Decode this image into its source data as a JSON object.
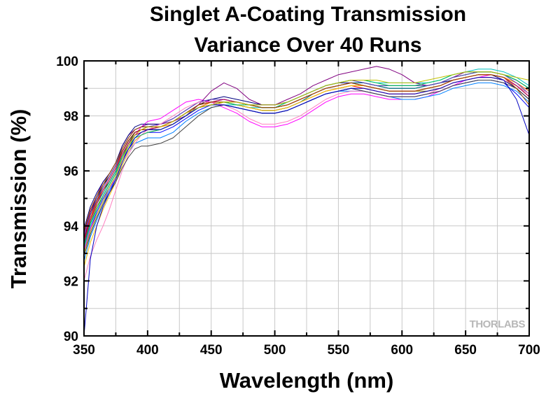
{
  "chart_data": {
    "type": "line",
    "title_line1": "Singlet A-Coating Transmission",
    "title_line2": "Variance Over 40 Runs",
    "xlabel": "Wavelength (nm)",
    "ylabel": "Transmission (%)",
    "xlim": [
      350,
      700
    ],
    "ylim": [
      90,
      100
    ],
    "x_ticks": [
      "350",
      "400",
      "450",
      "500",
      "550",
      "600",
      "650",
      "700"
    ],
    "y_ticks": [
      "90",
      "92",
      "94",
      "96",
      "98",
      "100"
    ],
    "grid": true,
    "legend": "none",
    "watermark": "THORLABS",
    "x": [
      350,
      355,
      360,
      365,
      370,
      375,
      380,
      385,
      390,
      395,
      400,
      410,
      420,
      430,
      440,
      450,
      460,
      470,
      480,
      490,
      500,
      510,
      520,
      530,
      540,
      550,
      560,
      570,
      580,
      590,
      600,
      610,
      620,
      630,
      640,
      650,
      660,
      670,
      680,
      690,
      700
    ],
    "series": [
      {
        "color": "#000000",
        "values": [
          93.8,
          94.5,
          95.0,
          95.5,
          95.8,
          96.2,
          96.8,
          97.2,
          97.5,
          97.6,
          97.6,
          97.6,
          97.8,
          98.1,
          98.4,
          98.6,
          98.6,
          98.5,
          98.4,
          98.3,
          98.3,
          98.4,
          98.6,
          98.8,
          99.0,
          99.1,
          99.2,
          99.1,
          99.0,
          98.9,
          98.9,
          98.9,
          99.0,
          99.1,
          99.3,
          99.4,
          99.5,
          99.5,
          99.4,
          99.1,
          98.8
        ]
      },
      {
        "color": "#ff0000",
        "values": [
          93.5,
          94.3,
          94.8,
          95.3,
          95.7,
          96.1,
          96.7,
          97.1,
          97.4,
          97.5,
          97.5,
          97.5,
          97.7,
          98.0,
          98.3,
          98.5,
          98.5,
          98.4,
          98.3,
          98.2,
          98.2,
          98.3,
          98.5,
          98.7,
          98.9,
          99.0,
          99.1,
          99.0,
          98.9,
          98.8,
          98.8,
          98.8,
          98.9,
          99.0,
          99.2,
          99.3,
          99.4,
          99.4,
          99.3,
          99.0,
          98.6
        ]
      },
      {
        "color": "#0000ff",
        "values": [
          93.0,
          93.9,
          94.5,
          95.0,
          95.4,
          95.8,
          96.4,
          96.8,
          97.1,
          97.3,
          97.4,
          97.4,
          97.6,
          97.9,
          98.2,
          98.4,
          98.4,
          98.3,
          98.2,
          98.1,
          98.1,
          98.2,
          98.4,
          98.6,
          98.8,
          98.9,
          99.0,
          98.9,
          98.8,
          98.7,
          98.7,
          98.7,
          98.8,
          98.9,
          99.1,
          99.2,
          99.3,
          99.3,
          99.2,
          98.8,
          98.3
        ]
      },
      {
        "color": "#00a000",
        "values": [
          93.4,
          94.2,
          94.8,
          95.3,
          95.6,
          96.0,
          96.6,
          97.0,
          97.4,
          97.5,
          97.6,
          97.6,
          97.8,
          98.1,
          98.4,
          98.5,
          98.5,
          98.5,
          98.4,
          98.4,
          98.4,
          98.5,
          98.7,
          98.9,
          99.1,
          99.2,
          99.3,
          99.2,
          99.1,
          99.1,
          99.1,
          99.1,
          99.1,
          99.2,
          99.4,
          99.5,
          99.6,
          99.6,
          99.5,
          99.3,
          99.0
        ]
      },
      {
        "color": "#ff00ff",
        "values": [
          93.1,
          93.9,
          94.4,
          94.9,
          95.3,
          95.8,
          96.4,
          96.9,
          97.3,
          97.6,
          97.8,
          97.9,
          98.2,
          98.5,
          98.6,
          98.5,
          98.3,
          98.1,
          97.8,
          97.6,
          97.6,
          97.7,
          97.9,
          98.2,
          98.5,
          98.7,
          98.8,
          98.8,
          98.7,
          98.6,
          98.6,
          98.6,
          98.7,
          98.9,
          99.1,
          99.3,
          99.4,
          99.5,
          99.4,
          99.2,
          98.9
        ]
      },
      {
        "color": "#00c0c0",
        "values": [
          93.2,
          94.0,
          94.6,
          95.1,
          95.5,
          95.9,
          96.5,
          96.9,
          97.3,
          97.4,
          97.5,
          97.6,
          97.8,
          98.1,
          98.3,
          98.4,
          98.4,
          98.4,
          98.3,
          98.3,
          98.3,
          98.5,
          98.7,
          98.9,
          99.1,
          99.2,
          99.3,
          99.3,
          99.2,
          99.2,
          99.2,
          99.2,
          99.2,
          99.3,
          99.5,
          99.6,
          99.7,
          99.7,
          99.6,
          99.4,
          99.1
        ]
      },
      {
        "color": "#800080",
        "values": [
          93.7,
          94.5,
          95.1,
          95.6,
          95.9,
          96.3,
          96.9,
          97.3,
          97.5,
          97.6,
          97.7,
          97.7,
          97.8,
          98.0,
          98.4,
          98.9,
          99.2,
          99.0,
          98.6,
          98.4,
          98.4,
          98.6,
          98.8,
          99.1,
          99.3,
          99.5,
          99.6,
          99.7,
          99.8,
          99.7,
          99.5,
          99.2,
          99.1,
          99.2,
          99.4,
          99.6,
          99.6,
          99.6,
          99.5,
          99.3,
          99.0
        ]
      },
      {
        "color": "#808000",
        "values": [
          93.3,
          94.1,
          94.7,
          95.1,
          95.5,
          95.9,
          96.5,
          97.0,
          97.3,
          97.4,
          97.5,
          97.5,
          97.7,
          98.0,
          98.3,
          98.4,
          98.5,
          98.4,
          98.3,
          98.2,
          98.2,
          98.3,
          98.5,
          98.7,
          98.9,
          99.0,
          99.1,
          99.1,
          99.0,
          98.9,
          98.9,
          98.9,
          98.9,
          99.0,
          99.2,
          99.3,
          99.4,
          99.4,
          99.3,
          99.1,
          98.7
        ]
      },
      {
        "color": "#000080",
        "values": [
          93.9,
          94.7,
          95.2,
          95.6,
          95.9,
          96.3,
          96.9,
          97.3,
          97.6,
          97.7,
          97.7,
          97.7,
          97.9,
          98.2,
          98.5,
          98.6,
          98.7,
          98.6,
          98.5,
          98.4,
          98.4,
          98.5,
          98.7,
          98.9,
          99.1,
          99.2,
          99.2,
          99.2,
          99.1,
          99.0,
          99.0,
          99.0,
          99.1,
          99.2,
          99.3,
          99.4,
          99.5,
          99.5,
          99.3,
          99.0,
          98.6
        ]
      },
      {
        "color": "#ff8000",
        "values": [
          93.6,
          94.3,
          94.9,
          95.3,
          95.7,
          96.1,
          96.7,
          97.1,
          97.4,
          97.5,
          97.6,
          97.6,
          97.7,
          98.0,
          98.3,
          98.5,
          98.5,
          98.5,
          98.4,
          98.3,
          98.3,
          98.4,
          98.6,
          98.8,
          99.0,
          99.1,
          99.2,
          99.1,
          99.0,
          98.9,
          98.9,
          98.9,
          99.0,
          99.1,
          99.3,
          99.4,
          99.5,
          99.5,
          99.4,
          99.2,
          98.9
        ]
      },
      {
        "color": "#0080ff",
        "values": [
          92.7,
          93.6,
          94.2,
          94.8,
          95.3,
          95.7,
          96.2,
          96.7,
          97.0,
          97.1,
          97.2,
          97.2,
          97.4,
          97.8,
          98.1,
          98.3,
          98.4,
          98.3,
          98.2,
          98.1,
          98.1,
          98.2,
          98.4,
          98.6,
          98.8,
          98.9,
          98.9,
          98.9,
          98.8,
          98.7,
          98.6,
          98.6,
          98.7,
          98.8,
          99.0,
          99.1,
          99.2,
          99.2,
          99.1,
          98.9,
          98.5
        ]
      },
      {
        "color": "#800000",
        "values": [
          93.5,
          94.4,
          94.9,
          95.4,
          95.8,
          96.2,
          96.7,
          97.1,
          97.4,
          97.5,
          97.5,
          97.6,
          97.8,
          98.1,
          98.4,
          98.5,
          98.6,
          98.5,
          98.4,
          98.3,
          98.3,
          98.4,
          98.6,
          98.8,
          99.0,
          99.1,
          99.2,
          99.1,
          99.0,
          98.9,
          98.9,
          98.9,
          99.0,
          99.1,
          99.3,
          99.4,
          99.5,
          99.5,
          99.4,
          99.1,
          98.7
        ]
      },
      {
        "color": "#008080",
        "values": [
          93.3,
          94.2,
          94.8,
          95.2,
          95.6,
          96.0,
          96.6,
          97.0,
          97.3,
          97.4,
          97.5,
          97.5,
          97.7,
          98.0,
          98.3,
          98.4,
          98.5,
          98.4,
          98.3,
          98.2,
          98.2,
          98.3,
          98.5,
          98.8,
          99.0,
          99.1,
          99.2,
          99.2,
          99.1,
          99.0,
          99.0,
          99.0,
          99.1,
          99.2,
          99.4,
          99.5,
          99.6,
          99.6,
          99.5,
          99.3,
          99.0
        ]
      },
      {
        "color": "#ffc000",
        "values": [
          92.5,
          93.4,
          94.0,
          94.6,
          95.1,
          95.6,
          96.2,
          96.7,
          97.1,
          97.3,
          97.4,
          97.5,
          97.7,
          98.0,
          98.3,
          98.4,
          98.5,
          98.4,
          98.3,
          98.2,
          98.2,
          98.3,
          98.5,
          98.7,
          98.9,
          99.0,
          99.1,
          99.1,
          99.0,
          98.9,
          98.9,
          98.9,
          99.0,
          99.1,
          99.3,
          99.4,
          99.5,
          99.5,
          99.4,
          99.2,
          98.8
        ]
      },
      {
        "color": "#6040c0",
        "values": [
          93.6,
          94.4,
          95.0,
          95.4,
          95.8,
          96.2,
          96.8,
          97.2,
          97.5,
          97.6,
          97.6,
          97.7,
          97.9,
          98.2,
          98.5,
          98.6,
          98.6,
          98.5,
          98.4,
          98.4,
          98.4,
          98.5,
          98.7,
          98.9,
          99.1,
          99.2,
          99.3,
          99.2,
          99.1,
          99.1,
          99.1,
          99.1,
          99.1,
          99.2,
          99.4,
          99.5,
          99.6,
          99.6,
          99.5,
          99.2,
          98.8
        ]
      },
      {
        "color": "#ff80c0",
        "values": [
          92.0,
          92.9,
          93.5,
          94.0,
          94.6,
          95.3,
          96.0,
          96.6,
          97.0,
          97.3,
          97.5,
          97.7,
          98.0,
          98.3,
          98.5,
          98.5,
          98.4,
          98.2,
          97.9,
          97.7,
          97.7,
          97.8,
          98.0,
          98.3,
          98.6,
          98.8,
          98.9,
          98.9,
          98.8,
          98.7,
          98.7,
          98.7,
          98.8,
          99.0,
          99.2,
          99.3,
          99.4,
          99.4,
          99.3,
          99.1,
          98.8
        ]
      },
      {
        "color": "#404040",
        "values": [
          92.9,
          93.7,
          94.3,
          94.8,
          95.2,
          95.6,
          96.1,
          96.5,
          96.8,
          96.9,
          96.9,
          97.0,
          97.2,
          97.6,
          98.0,
          98.3,
          98.4,
          98.3,
          98.2,
          98.1,
          98.1,
          98.2,
          98.4,
          98.6,
          98.8,
          98.9,
          99.0,
          98.9,
          98.8,
          98.7,
          98.7,
          98.7,
          98.8,
          98.9,
          99.1,
          99.2,
          99.3,
          99.3,
          99.2,
          99.0,
          98.6
        ]
      },
      {
        "color": "#c00060",
        "values": [
          93.4,
          94.2,
          94.8,
          95.3,
          95.7,
          96.1,
          96.6,
          97.0,
          97.3,
          97.4,
          97.5,
          97.6,
          97.8,
          98.1,
          98.4,
          98.5,
          98.6,
          98.5,
          98.4,
          98.3,
          98.3,
          98.4,
          98.6,
          98.8,
          99.0,
          99.1,
          99.2,
          99.1,
          99.0,
          98.9,
          98.9,
          98.9,
          99.0,
          99.1,
          99.3,
          99.4,
          99.5,
          99.5,
          99.4,
          99.1,
          98.7
        ]
      },
      {
        "color": "#00c060",
        "values": [
          93.2,
          94.1,
          94.6,
          95.1,
          95.5,
          95.9,
          96.5,
          96.9,
          97.2,
          97.3,
          97.4,
          97.5,
          97.7,
          98.0,
          98.3,
          98.4,
          98.5,
          98.4,
          98.4,
          98.3,
          98.3,
          98.5,
          98.7,
          98.9,
          99.1,
          99.2,
          99.3,
          99.3,
          99.2,
          99.1,
          99.1,
          99.1,
          99.2,
          99.3,
          99.5,
          99.6,
          99.6,
          99.6,
          99.5,
          99.3,
          99.0
        ]
      },
      {
        "color": "#0000c0",
        "values": [
          90.0,
          92.8,
          94.0,
          94.7,
          95.2,
          95.7,
          96.3,
          96.8,
          97.2,
          97.4,
          97.5,
          97.5,
          97.7,
          98.0,
          98.3,
          98.4,
          98.4,
          98.3,
          98.2,
          98.1,
          98.1,
          98.2,
          98.4,
          98.6,
          98.8,
          98.9,
          99.0,
          99.0,
          98.9,
          98.8,
          98.8,
          98.8,
          98.9,
          99.0,
          99.2,
          99.3,
          99.4,
          99.4,
          99.3,
          98.6,
          97.3
        ]
      },
      {
        "color": "#a05000",
        "values": [
          93.8,
          94.6,
          95.1,
          95.5,
          95.9,
          96.3,
          96.8,
          97.2,
          97.5,
          97.6,
          97.6,
          97.6,
          97.8,
          98.1,
          98.4,
          98.5,
          98.5,
          98.5,
          98.4,
          98.3,
          98.3,
          98.4,
          98.6,
          98.8,
          99.0,
          99.1,
          99.2,
          99.1,
          99.0,
          98.9,
          98.9,
          98.9,
          99.0,
          99.1,
          99.3,
          99.4,
          99.5,
          99.5,
          99.4,
          99.0,
          98.4
        ]
      },
      {
        "color": "#c0c000",
        "values": [
          93.0,
          93.8,
          94.4,
          94.9,
          95.4,
          95.8,
          96.4,
          96.9,
          97.3,
          97.5,
          97.6,
          97.6,
          97.8,
          98.1,
          98.3,
          98.4,
          98.5,
          98.5,
          98.4,
          98.4,
          98.4,
          98.5,
          98.7,
          98.9,
          99.1,
          99.2,
          99.3,
          99.3,
          99.3,
          99.2,
          99.2,
          99.2,
          99.3,
          99.4,
          99.5,
          99.6,
          99.6,
          99.6,
          99.5,
          99.4,
          99.3
        ]
      }
    ]
  }
}
